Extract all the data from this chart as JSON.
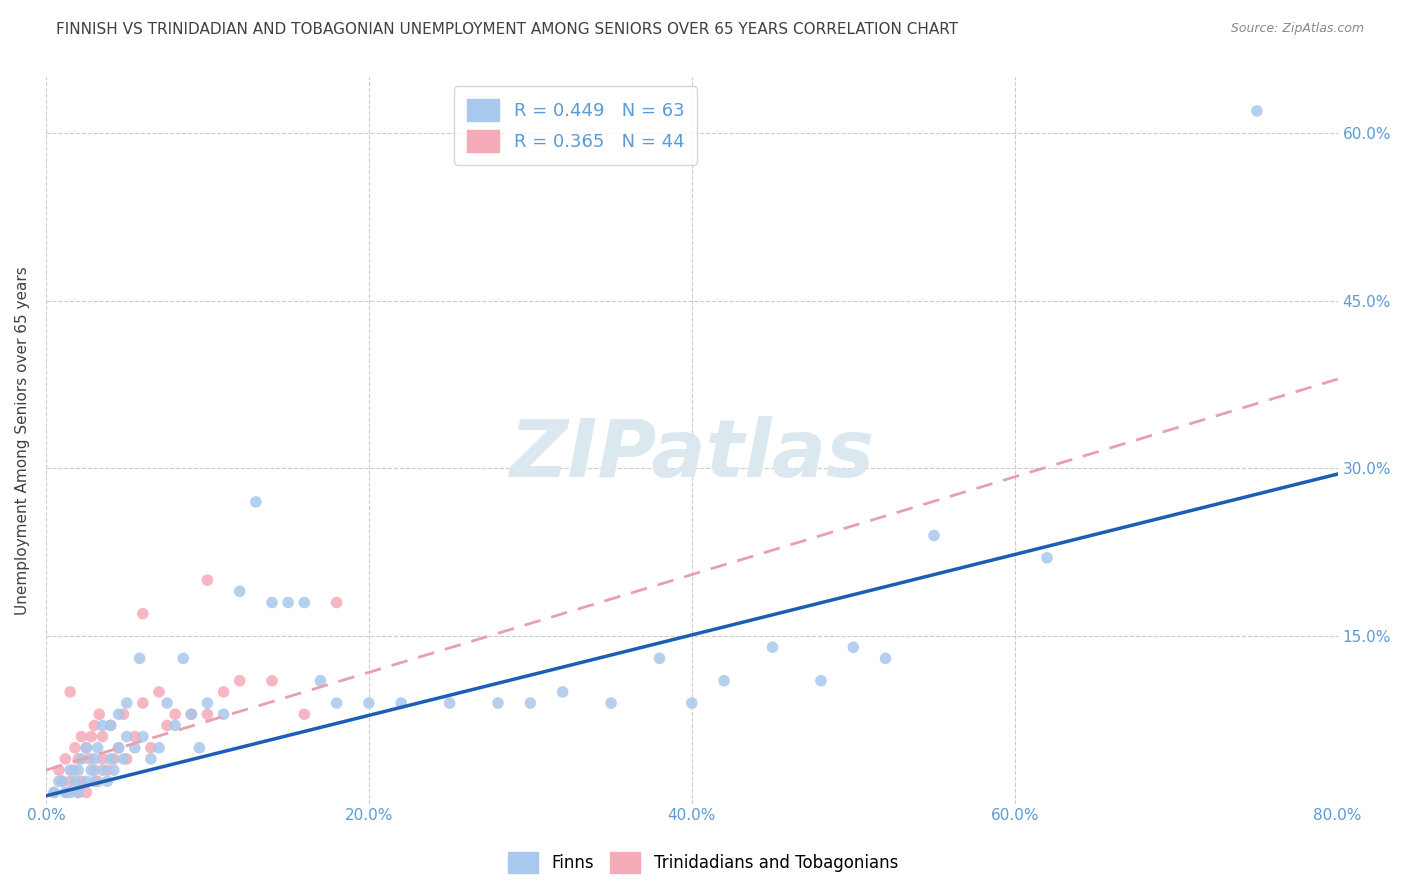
{
  "title": "FINNISH VS TRINIDADIAN AND TOBAGONIAN UNEMPLOYMENT AMONG SENIORS OVER 65 YEARS CORRELATION CHART",
  "source": "Source: ZipAtlas.com",
  "ylabel": "Unemployment Among Seniors over 65 years",
  "xlim": [
    0,
    0.8
  ],
  "ylim": [
    0,
    0.65
  ],
  "xticks": [
    0.0,
    0.2,
    0.4,
    0.6,
    0.8
  ],
  "yticks": [
    0.0,
    0.15,
    0.3,
    0.45,
    0.6
  ],
  "xticklabels": [
    "0.0%",
    "20.0%",
    "40.0%",
    "60.0%",
    "80.0%"
  ],
  "left_yticklabels": [
    "",
    "",
    "",
    "",
    ""
  ],
  "right_yticklabels": [
    "",
    "15.0%",
    "30.0%",
    "45.0%",
    "60.0%"
  ],
  "finns_R": 0.449,
  "finns_N": 63,
  "trini_R": 0.365,
  "trini_N": 44,
  "finn_color": "#a8c8ed",
  "trini_color": "#f5aab8",
  "finn_line_color": "#1a5fb4",
  "trini_line_color": "#e8a0b0",
  "watermark": "ZIPatlas",
  "watermark_color": "#dce8f0",
  "background_color": "#ffffff",
  "grid_color": "#cccccc",
  "title_color": "#404040",
  "axis_color": "#5b9bd5",
  "legend_finn_label": "R = 0.449   N = 63",
  "legend_trini_label": "R = 0.365   N = 44",
  "finns_x": [
    0.005,
    0.008,
    0.01,
    0.012,
    0.015,
    0.015,
    0.018,
    0.02,
    0.02,
    0.022,
    0.025,
    0.025,
    0.028,
    0.03,
    0.03,
    0.032,
    0.035,
    0.035,
    0.038,
    0.04,
    0.04,
    0.042,
    0.045,
    0.045,
    0.048,
    0.05,
    0.05,
    0.055,
    0.058,
    0.06,
    0.065,
    0.07,
    0.075,
    0.08,
    0.085,
    0.09,
    0.095,
    0.1,
    0.11,
    0.12,
    0.13,
    0.14,
    0.15,
    0.16,
    0.17,
    0.18,
    0.2,
    0.22,
    0.25,
    0.28,
    0.3,
    0.32,
    0.35,
    0.38,
    0.4,
    0.42,
    0.45,
    0.48,
    0.5,
    0.52,
    0.55,
    0.62,
    0.75
  ],
  "finns_y": [
    0.01,
    0.02,
    0.02,
    0.01,
    0.03,
    0.01,
    0.02,
    0.03,
    0.01,
    0.04,
    0.02,
    0.05,
    0.03,
    0.04,
    0.02,
    0.05,
    0.03,
    0.07,
    0.02,
    0.04,
    0.07,
    0.03,
    0.05,
    0.08,
    0.04,
    0.06,
    0.09,
    0.05,
    0.13,
    0.06,
    0.04,
    0.05,
    0.09,
    0.07,
    0.13,
    0.08,
    0.05,
    0.09,
    0.08,
    0.19,
    0.27,
    0.18,
    0.18,
    0.18,
    0.11,
    0.09,
    0.09,
    0.09,
    0.09,
    0.09,
    0.09,
    0.1,
    0.09,
    0.13,
    0.09,
    0.11,
    0.14,
    0.11,
    0.14,
    0.13,
    0.24,
    0.22,
    0.62
  ],
  "trini_x": [
    0.005,
    0.008,
    0.01,
    0.012,
    0.013,
    0.015,
    0.015,
    0.017,
    0.018,
    0.02,
    0.02,
    0.022,
    0.022,
    0.025,
    0.025,
    0.027,
    0.028,
    0.03,
    0.03,
    0.032,
    0.033,
    0.035,
    0.035,
    0.038,
    0.04,
    0.042,
    0.045,
    0.048,
    0.05,
    0.055,
    0.06,
    0.065,
    0.07,
    0.075,
    0.08,
    0.09,
    0.1,
    0.11,
    0.12,
    0.14,
    0.16,
    0.18,
    0.1,
    0.06
  ],
  "trini_y": [
    0.01,
    0.03,
    0.02,
    0.04,
    0.01,
    0.1,
    0.02,
    0.03,
    0.05,
    0.04,
    0.01,
    0.06,
    0.02,
    0.05,
    0.01,
    0.04,
    0.06,
    0.03,
    0.07,
    0.02,
    0.08,
    0.04,
    0.06,
    0.03,
    0.07,
    0.04,
    0.05,
    0.08,
    0.04,
    0.06,
    0.09,
    0.05,
    0.1,
    0.07,
    0.08,
    0.08,
    0.08,
    0.1,
    0.11,
    0.11,
    0.08,
    0.18,
    0.2,
    0.17
  ],
  "finn_line_x": [
    0.0,
    0.8
  ],
  "finn_line_y": [
    0.007,
    0.295
  ],
  "trini_line_x": [
    0.0,
    0.8
  ],
  "trini_line_y": [
    0.03,
    0.38
  ]
}
